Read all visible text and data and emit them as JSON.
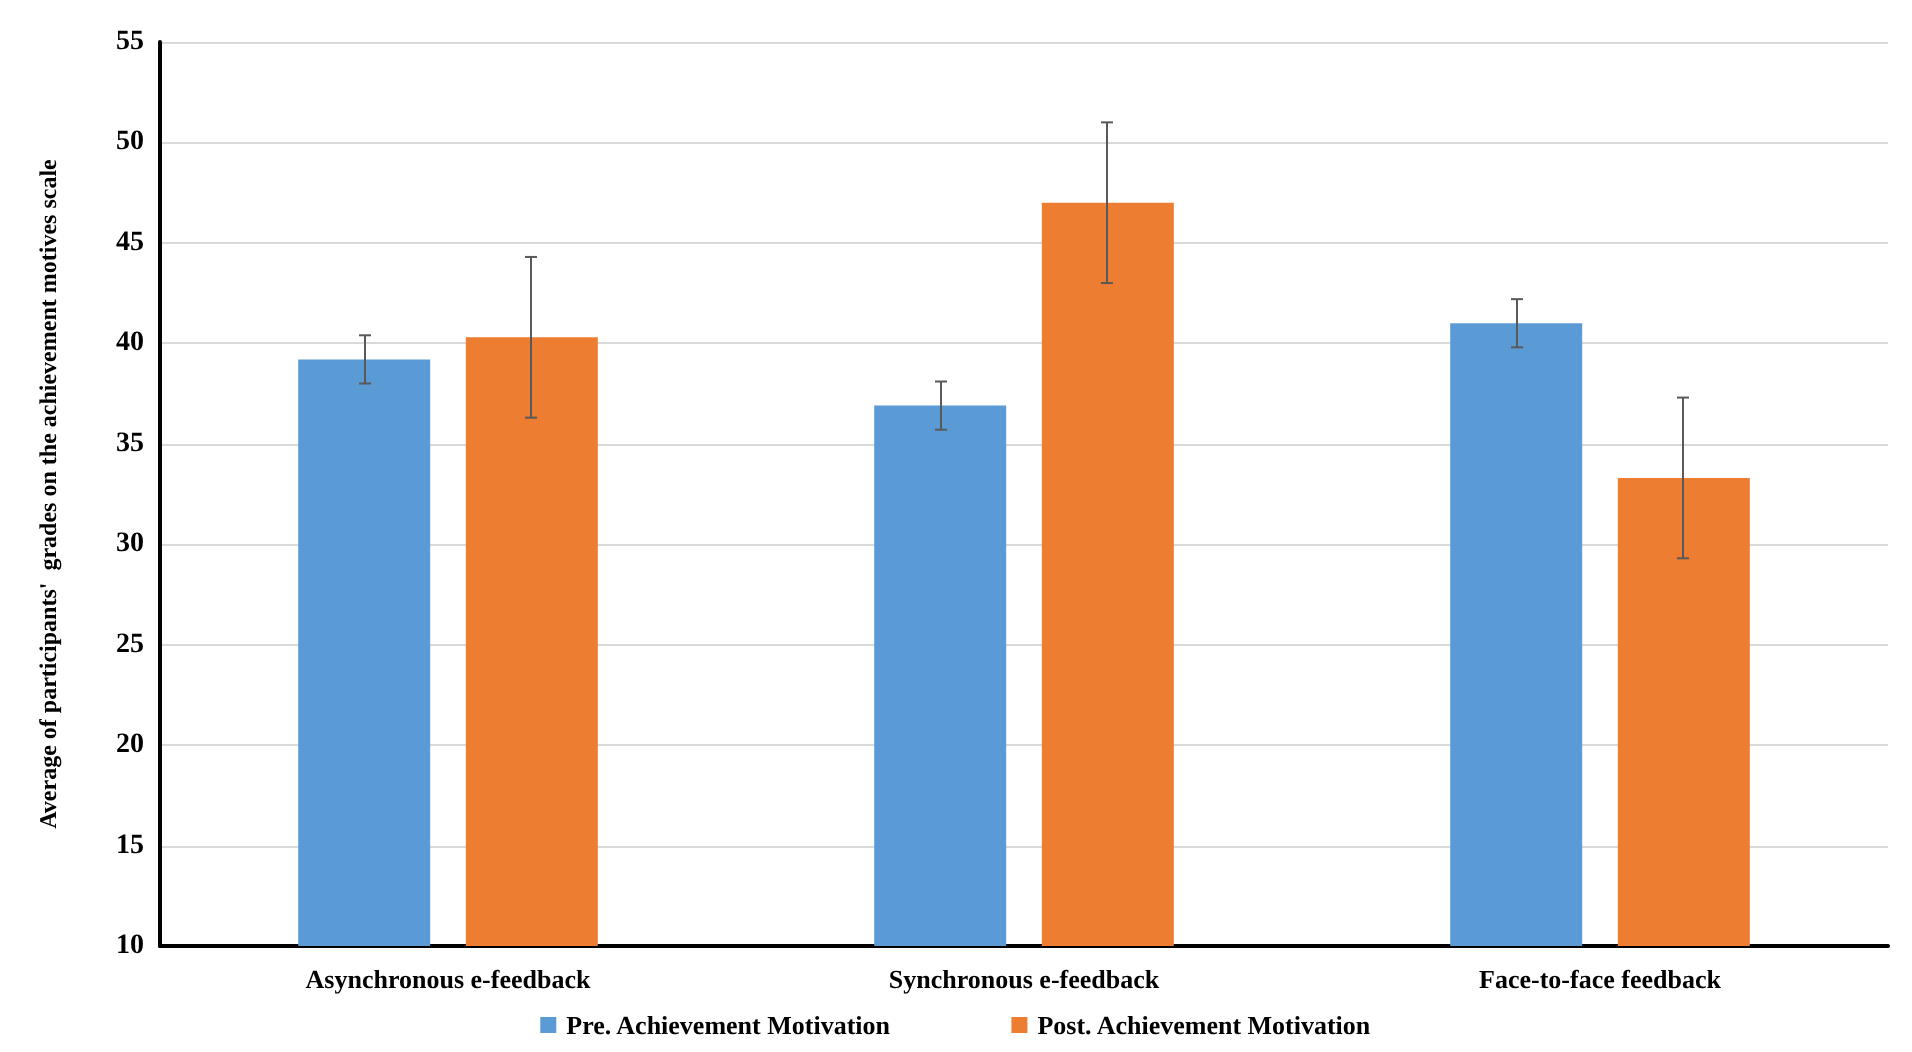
{
  "chart_data": {
    "type": "bar",
    "ylabel": "Average of participants'  grades on the achievement motives scale",
    "categories": [
      "Asynchronous e-feedback",
      "Synchronous e-feedback",
      "Face-to-face feedback"
    ],
    "series": [
      {
        "name": "Pre. Achievement Motivation",
        "color": "#5b9bd5",
        "values": [
          39.2,
          36.9,
          41.0
        ],
        "errors": [
          1.2,
          1.2,
          1.2
        ]
      },
      {
        "name": "Post. Achievement Motivation",
        "color": "#ed7d31",
        "values": [
          40.3,
          47.0,
          33.3
        ],
        "errors": [
          4,
          4,
          4
        ]
      }
    ],
    "ylim": [
      10,
      55
    ],
    "yticks": [
      10,
      15,
      20,
      25,
      30,
      35,
      40,
      45,
      50,
      55
    ],
    "grid": "y",
    "legend": "bottom"
  }
}
